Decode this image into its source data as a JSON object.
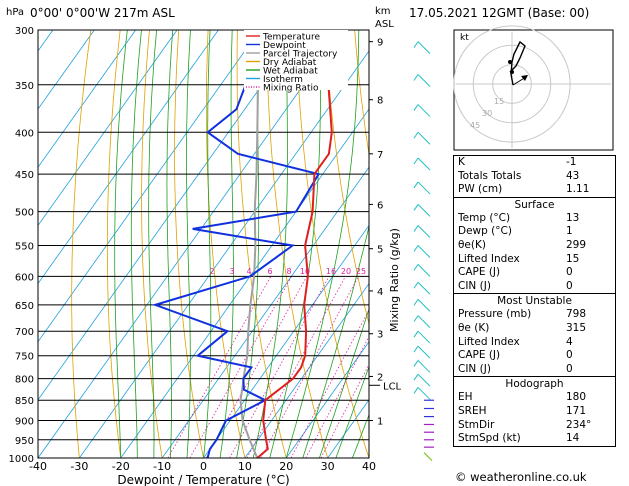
{
  "header": {
    "location": "0°00'  0°00'W  217m  ASL",
    "datetime": "17.05.2021  12GMT  (Base: 00)"
  },
  "footer": {
    "credit": "© weatheronline.co.uk"
  },
  "chart_data": {
    "type": "skew-t",
    "xlabel": "Dewpoint / Temperature (°C)",
    "ylabel_left": "hPa",
    "ylabel_right": "Mixing Ratio (g/kg)",
    "km_label": "km\nASL",
    "x_ticks": [
      -40,
      -30,
      -20,
      -10,
      0,
      10,
      20,
      30,
      40
    ],
    "pressure_levels": [
      300,
      350,
      400,
      450,
      500,
      550,
      600,
      650,
      700,
      750,
      800,
      850,
      900,
      950,
      1000
    ],
    "km_ticks": [
      {
        "km": "9",
        "p": 310
      },
      {
        "km": "8",
        "p": 365
      },
      {
        "km": "7",
        "p": 425
      },
      {
        "km": "6",
        "p": 490
      },
      {
        "km": "5",
        "p": 555
      },
      {
        "km": "4",
        "p": 625
      },
      {
        "km": "3",
        "p": 705
      },
      {
        "km": "2",
        "p": 795
      },
      {
        "km": "1",
        "p": 900
      }
    ],
    "lcl": {
      "label": "LCL",
      "p": 815
    },
    "mixing_ratio_labels": [
      "2",
      "3",
      "4",
      "6",
      "8",
      "10",
      "16",
      "20",
      "25"
    ],
    "legend": [
      {
        "name": "Temperature",
        "color": "#e02020",
        "style": "solid"
      },
      {
        "name": "Dewpoint",
        "color": "#1030e0",
        "style": "solid"
      },
      {
        "name": "Parcel Trajectory",
        "color": "#a0a0a0",
        "style": "solid"
      },
      {
        "name": "Dry Adiabat",
        "color": "#e0a000",
        "style": "solid"
      },
      {
        "name": "Wet Adiabat",
        "color": "#20a020",
        "style": "solid"
      },
      {
        "name": "Isotherm",
        "color": "#20a0e0",
        "style": "solid"
      },
      {
        "name": "Mixing Ratio",
        "color": "#e020a0",
        "style": "dotted"
      }
    ],
    "temperature": [
      [
        1000,
        13
      ],
      [
        975,
        14
      ],
      [
        950,
        12
      ],
      [
        900,
        8
      ],
      [
        850,
        5
      ],
      [
        800,
        8
      ],
      [
        775,
        8
      ],
      [
        750,
        7
      ],
      [
        700,
        3
      ],
      [
        650,
        -2
      ],
      [
        600,
        -6
      ],
      [
        550,
        -12
      ],
      [
        500,
        -16
      ],
      [
        450,
        -22
      ],
      [
        425,
        -22
      ],
      [
        400,
        -25
      ],
      [
        350,
        -34
      ],
      [
        325,
        -38
      ],
      [
        300,
        -43
      ]
    ],
    "dewpoint": [
      [
        1000,
        1
      ],
      [
        975,
        0
      ],
      [
        950,
        0
      ],
      [
        900,
        -1
      ],
      [
        850,
        5
      ],
      [
        825,
        -2
      ],
      [
        800,
        -4
      ],
      [
        775,
        -4
      ],
      [
        750,
        -19
      ],
      [
        700,
        -16
      ],
      [
        650,
        -38
      ],
      [
        600,
        -20
      ],
      [
        550,
        -15
      ],
      [
        525,
        -42
      ],
      [
        500,
        -20
      ],
      [
        450,
        -21
      ],
      [
        425,
        -44
      ],
      [
        400,
        -55
      ],
      [
        375,
        -52
      ],
      [
        350,
        -54
      ],
      [
        325,
        -42
      ],
      [
        300,
        -45
      ]
    ],
    "parcel": [
      [
        1000,
        13
      ],
      [
        950,
        8
      ],
      [
        900,
        3
      ],
      [
        850,
        -1
      ],
      [
        815,
        -3
      ],
      [
        800,
        -4
      ],
      [
        750,
        -7
      ],
      [
        700,
        -11
      ],
      [
        650,
        -15
      ],
      [
        600,
        -19
      ],
      [
        550,
        -24
      ],
      [
        500,
        -30
      ],
      [
        450,
        -36
      ],
      [
        400,
        -43
      ],
      [
        350,
        -51
      ],
      [
        300,
        -60
      ]
    ],
    "hodograph_speed_labels": [
      "45",
      "30",
      "15"
    ],
    "hodograph_unit": "kt"
  },
  "indices": {
    "k": {
      "label": "K",
      "value": "-1"
    },
    "tt": {
      "label": "Totals Totals",
      "value": "43"
    },
    "pw": {
      "label": "PW (cm)",
      "value": "1.11"
    }
  },
  "surface": {
    "title": "Surface",
    "rows": [
      {
        "label": "Temp (°C)",
        "value": "13"
      },
      {
        "label": "Dewp (°C)",
        "value": "1"
      },
      {
        "label": "θe(K)",
        "value": "299"
      },
      {
        "label": "Lifted Index",
        "value": "15"
      },
      {
        "label": "CAPE (J)",
        "value": "0"
      },
      {
        "label": "CIN (J)",
        "value": "0"
      }
    ]
  },
  "most_unstable": {
    "title": "Most Unstable",
    "rows": [
      {
        "label": "Pressure (mb)",
        "value": "798"
      },
      {
        "label": "θe (K)",
        "value": "315"
      },
      {
        "label": "Lifted Index",
        "value": "4"
      },
      {
        "label": "CAPE (J)",
        "value": "0"
      },
      {
        "label": "CIN (J)",
        "value": "0"
      }
    ]
  },
  "hodograph": {
    "title": "Hodograph",
    "rows": [
      {
        "label": "EH",
        "value": "180"
      },
      {
        "label": "SREH",
        "value": "171"
      },
      {
        "label": "StmDir",
        "value": "234°"
      },
      {
        "label": "StmSpd (kt)",
        "value": "14"
      }
    ]
  }
}
